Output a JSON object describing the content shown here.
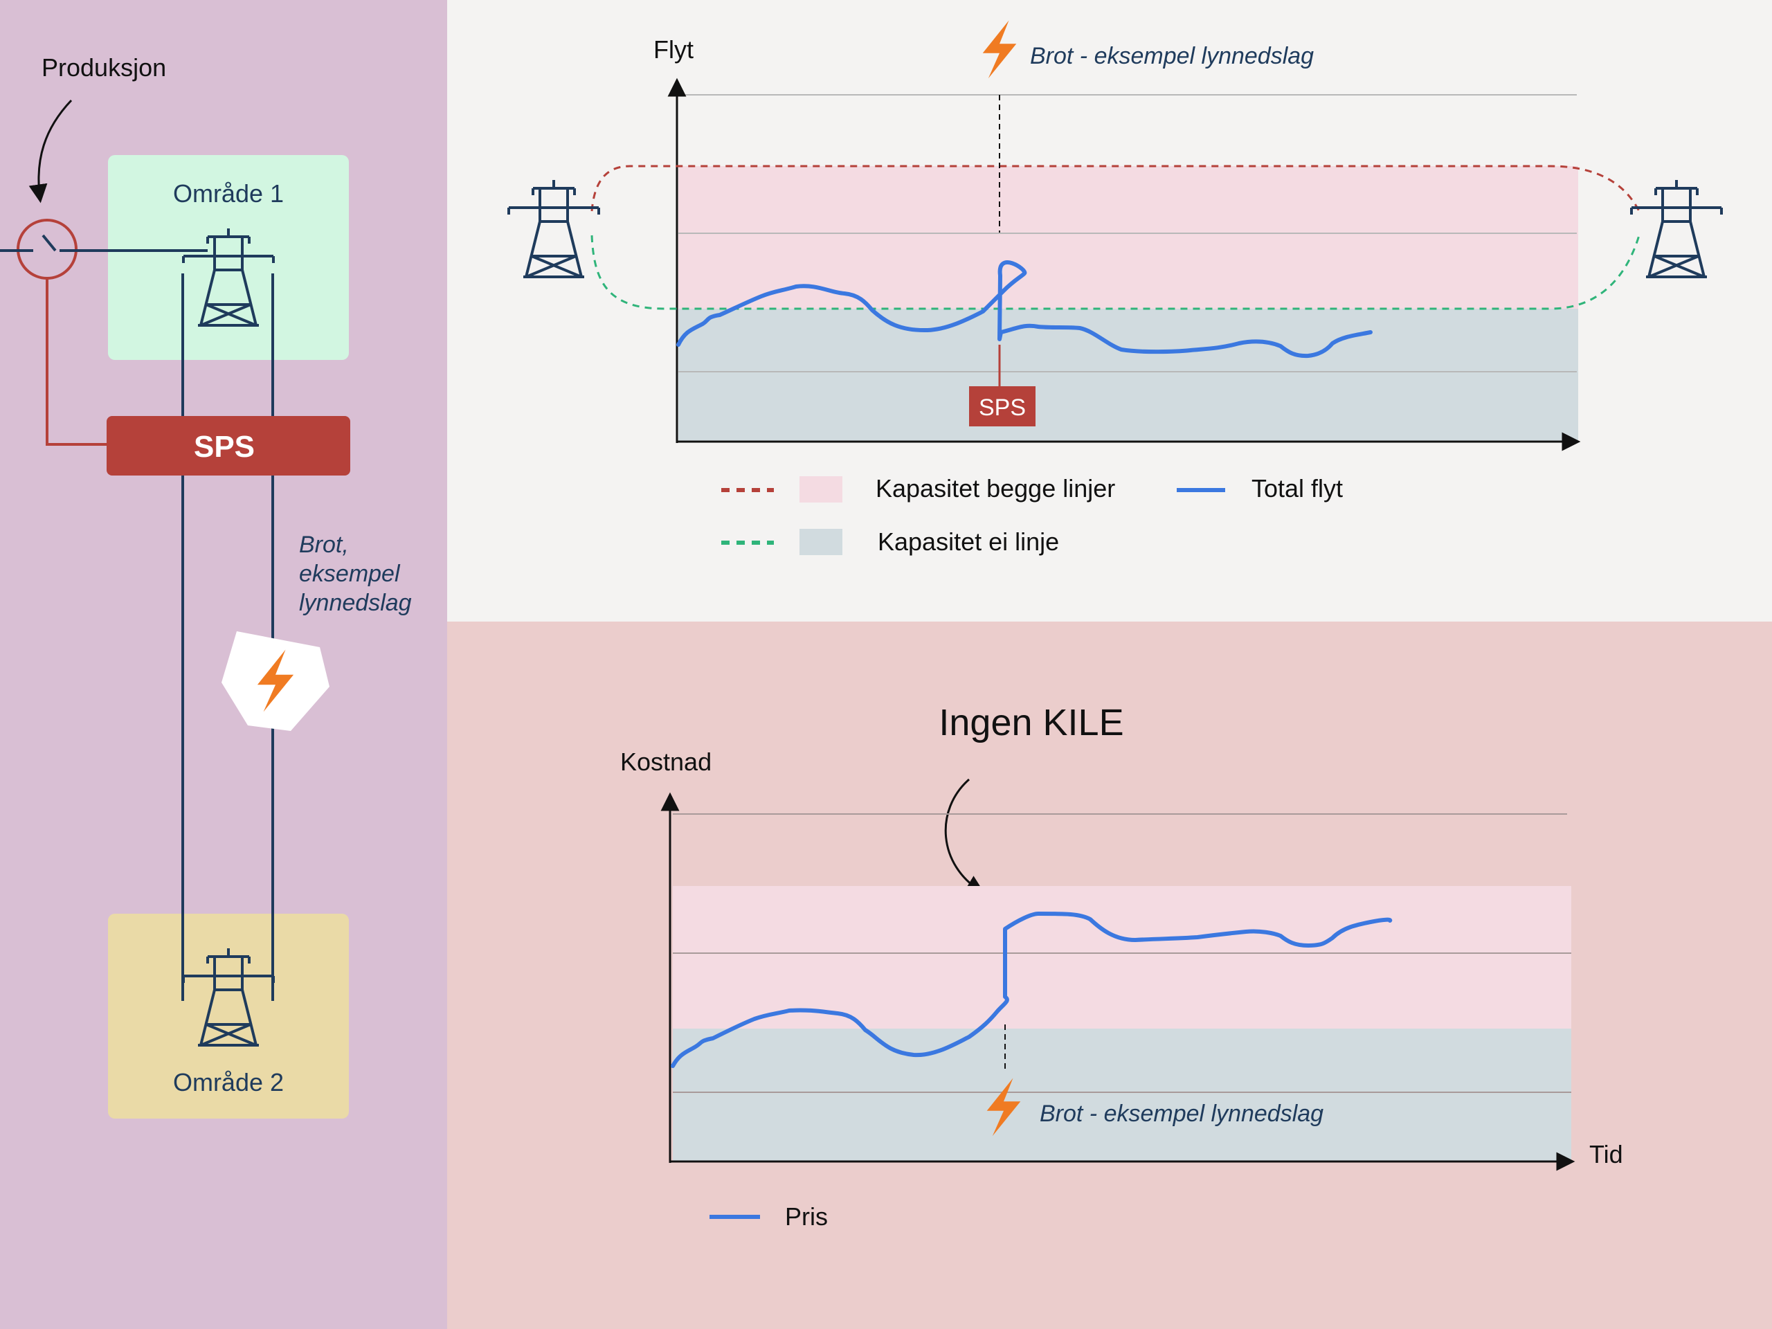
{
  "left_panel": {
    "produksjon_label": "Produksjon",
    "area1_label": "Område 1",
    "area2_label": "Område 2",
    "sps_label": "SPS",
    "fault_lines": [
      "Brot,",
      "eksempel",
      "lynnedslag"
    ]
  },
  "top_chart": {
    "ylabel": "Flyt",
    "fault_label": "Brot - eksempel lynnedslag",
    "sps_marker_label": "SPS",
    "legend": {
      "capacity_both": "Kapasitet begge linjer",
      "capacity_one": "Kapasitet ei linje",
      "total_flow": "Total flyt"
    }
  },
  "bottom_chart": {
    "title": "Ingen KILE",
    "ylabel": "Kostnad",
    "xlabel": "Tid",
    "fault_label": "Brot - eksempel lynnedslag",
    "legend": {
      "price": "Pris"
    }
  },
  "colors": {
    "left_bg": "#d9bfd4",
    "top_bg": "#f4f3f2",
    "bottom_bg": "#ebcdcc",
    "area1_fill": "#d2f6e1",
    "area2_fill": "#eadaa7",
    "sps_red": "#b5413a",
    "navy": "#1f3b5c",
    "flow_blue": "#3b78e0",
    "band_pink": "#f4dbe2",
    "band_gray": "#d1dbdf",
    "red_dash": "#b5413a",
    "green_dash": "#2fb47a",
    "bolt_orange": "#f07b22"
  }
}
